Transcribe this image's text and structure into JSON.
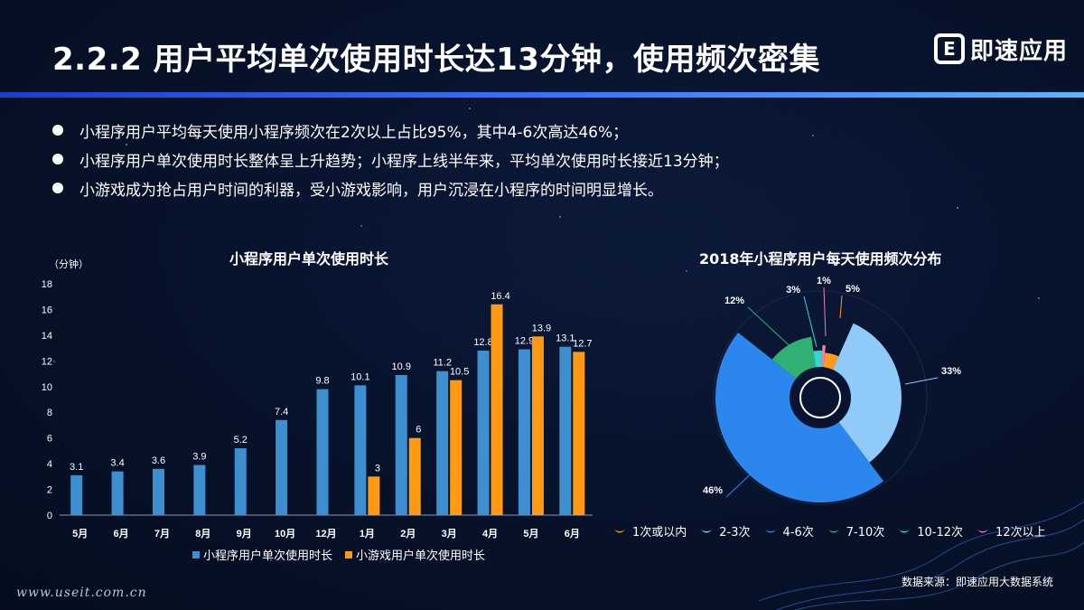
{
  "header": {
    "title": "2.2.2  用户平均单次使用时长达13分钟，使用频次密集",
    "brand_logo": "E",
    "brand_name": "即速应用"
  },
  "bullets": [
    "小程序用户平均每天使用小程序频次在2次以上占比95%，其中4-6次高达46%；",
    "小程序用户单次使用时长整体呈上升趋势；小程序上线半年来，平均单次使用时长接近13分钟；",
    "小游戏成为抢占用户时间的利器，受小游戏影响，用户沉浸在小程序的时间明显增长。"
  ],
  "chart_data": [
    {
      "type": "bar",
      "title": "小程序用户单次使用时长",
      "ylabel": "（分钟）",
      "xlabel": "",
      "ylim": [
        0,
        18
      ],
      "yticks": [
        0,
        2,
        4,
        6,
        8,
        10,
        12,
        14,
        16,
        18
      ],
      "categories": [
        "5月",
        "6月",
        "7月",
        "8月",
        "9月",
        "10月",
        "12月",
        "1月",
        "2月",
        "3月",
        "4月",
        "5月",
        "6月"
      ],
      "series": [
        {
          "name": "小程序用户单次使用时长",
          "color": "#3d8fd0",
          "values": [
            3.1,
            3.4,
            3.6,
            3.9,
            5.2,
            7.4,
            9.8,
            10.1,
            10.9,
            11.2,
            12.8,
            12.9,
            13.1
          ]
        },
        {
          "name": "小游戏用户单次使用时长",
          "color": "#ff9a12",
          "values": [
            null,
            null,
            null,
            null,
            null,
            null,
            null,
            3,
            6,
            10.5,
            16.4,
            13.9,
            12.7
          ]
        }
      ],
      "legend_position": "bottom",
      "grid": false
    },
    {
      "type": "pie",
      "title": "2018年小程序用户每天使用频次分布",
      "labels": [
        "1次或以内",
        "2-3次",
        "4-6次",
        "7-10次",
        "10-12次",
        "12次以上"
      ],
      "values": [
        5,
        33,
        46,
        12,
        3,
        1
      ],
      "value_labels": [
        "5%",
        "33%",
        "46%",
        "12%",
        "3%",
        "1%"
      ],
      "colors": [
        "#ff9d1a",
        "#8fcaf8",
        "#2b86ee",
        "#2fb074",
        "#33d6d6",
        "#f47bb3"
      ],
      "legend_position": "bottom"
    }
  ],
  "footer": {
    "url": "www.useit.com.cn",
    "source": "数据来源：即速应用大数据系统"
  }
}
